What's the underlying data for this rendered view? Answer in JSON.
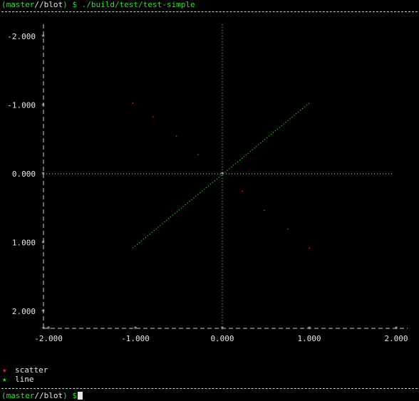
{
  "terminal": {
    "top_prompt": {
      "open": "(",
      "branch": "master",
      "path": "//blot",
      "close": ")",
      "symbol": "$",
      "command": "./build/test/test-simple"
    },
    "bottom_prompt": {
      "open": "(",
      "branch": "master",
      "path": "//blot",
      "close": ")",
      "symbol": "$"
    },
    "colors": {
      "prompt": "#33dd33",
      "text": "#e6e6e6",
      "background": "#000000"
    }
  },
  "chart_data": {
    "type": "scatter",
    "title": "",
    "xlabel": "",
    "ylabel": "",
    "xlim": [
      -2.0,
      2.0
    ],
    "ylim": [
      -2.0,
      2.0
    ],
    "y_axis_inverted": true,
    "x_ticks": [
      "-2.000",
      "-1.000",
      "0.000",
      "1.000",
      "2.000"
    ],
    "y_ticks": [
      "-2.000",
      "-1.000",
      "0.000",
      "1.000",
      "2.000"
    ],
    "grid": false,
    "axis_glyph": "*",
    "legend_placement": "bottom-left",
    "series": [
      {
        "name": "scatter",
        "kind": "scatter",
        "color": "#ee2222",
        "glyph": "*",
        "x": [
          -1.03,
          -0.8,
          -0.53,
          -0.28,
          0.23,
          0.48,
          0.75,
          1.0
        ],
        "y": [
          -1.03,
          -0.83,
          -0.55,
          -0.28,
          0.25,
          0.53,
          0.8,
          1.08
        ]
      },
      {
        "name": "line",
        "kind": "line",
        "color": "#22dd22",
        "glyph": "*",
        "x": [
          -1.03,
          1.0
        ],
        "y": [
          1.08,
          -1.03
        ]
      }
    ]
  }
}
